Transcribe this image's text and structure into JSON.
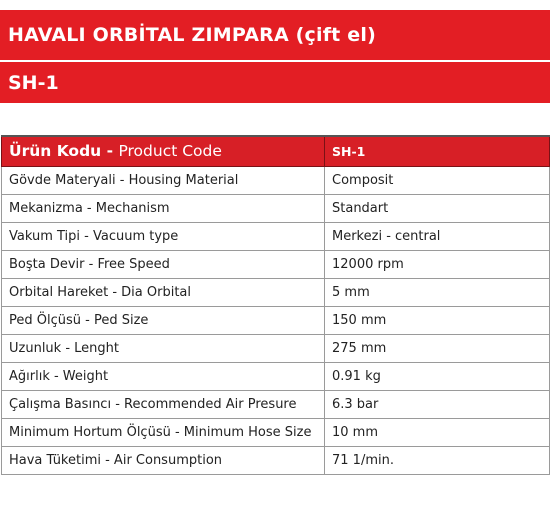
{
  "header": {
    "title": "HAVALI ORBİTAL ZIMPARA (çift el)",
    "model": "SH-1"
  },
  "table": {
    "header": {
      "label_tr": "Ürün Kodu - ",
      "label_en": "Product Code",
      "value": "SH-1"
    },
    "rows": [
      {
        "label": "Gövde Materyali - Housing Material",
        "value": "Composit"
      },
      {
        "label": "Mekanizma - Mechanism",
        "value": "Standart"
      },
      {
        "label": "Vakum Tipi - Vacuum type",
        "value": "Merkezi - central"
      },
      {
        "label": "Boşta Devir - Free Speed",
        "value": "12000 rpm"
      },
      {
        "label": "Orbital Hareket - Dia Orbital",
        "value": "5 mm"
      },
      {
        "label": "Ped Ölçüsü - Ped Size",
        "value": "150 mm"
      },
      {
        "label": "Uzunluk - Lenght",
        "value": "275 mm"
      },
      {
        "label": "Ağırlık - Weight",
        "value": "0.91 kg"
      },
      {
        "label": "Çalışma Basıncı - Recommended Air Presure",
        "value": "6.3 bar"
      },
      {
        "label": "Minimum Hortum Ölçüsü - Minimum Hose Size",
        "value": "10 mm"
      },
      {
        "label": "Hava Tüketimi - Air Consumption",
        "value": "71 1/min."
      }
    ]
  }
}
